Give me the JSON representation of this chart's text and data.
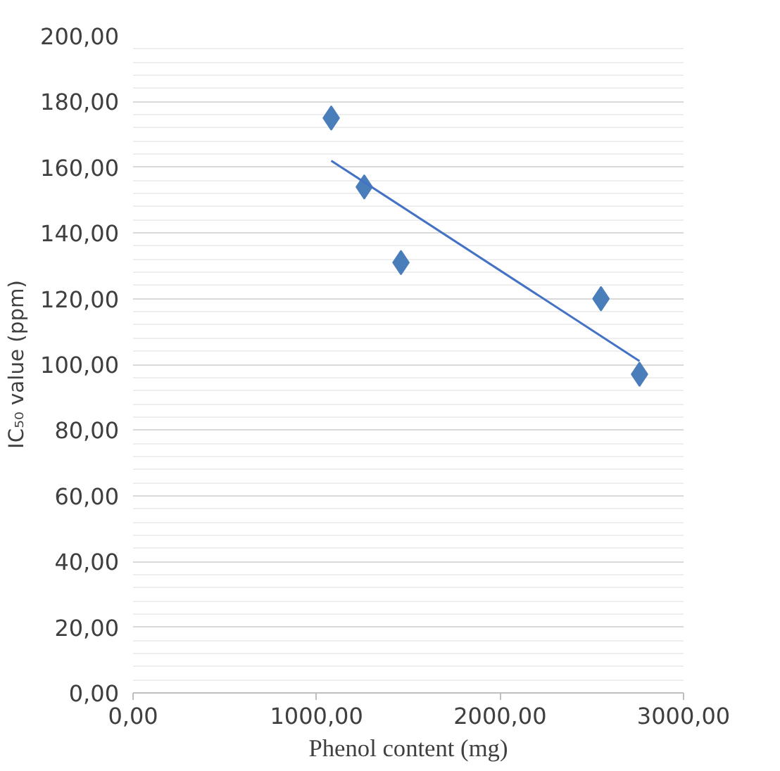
{
  "chart_data": {
    "type": "scatter",
    "xlabel": "Phenol content (mg)",
    "ylabel": "IC₅₀ value (ppm)",
    "xlim": [
      0,
      3000
    ],
    "ylim": [
      0,
      200
    ],
    "xticks": [
      {
        "value": 0,
        "label": "0,00"
      },
      {
        "value": 1000,
        "label": "1000,00"
      },
      {
        "value": 2000,
        "label": "2000,00"
      },
      {
        "value": 3000,
        "label": "3000,00"
      }
    ],
    "yticks": [
      {
        "value": 0,
        "label": "0,00"
      },
      {
        "value": 20,
        "label": "20,00"
      },
      {
        "value": 40,
        "label": "40,00"
      },
      {
        "value": 60,
        "label": "60,00"
      },
      {
        "value": 80,
        "label": "80,00"
      },
      {
        "value": 100,
        "label": "100,00"
      },
      {
        "value": 120,
        "label": "120,00"
      },
      {
        "value": 140,
        "label": "140,00"
      },
      {
        "value": 160,
        "label": "160,00"
      },
      {
        "value": 180,
        "label": "180,00"
      },
      {
        "value": 200,
        "label": "200,00"
      }
    ],
    "grid": "y",
    "series": [
      {
        "color": "#4a7ebb",
        "marker": "diamond",
        "x": [
          1080,
          1260,
          1460,
          2550,
          2760
        ],
        "values": [
          175,
          154,
          131,
          120,
          97
        ]
      },
      {
        "type": "line",
        "color": "#4472c4",
        "marker": "none",
        "x": [
          1080,
          2760
        ],
        "values": [
          162,
          101
        ]
      }
    ]
  }
}
